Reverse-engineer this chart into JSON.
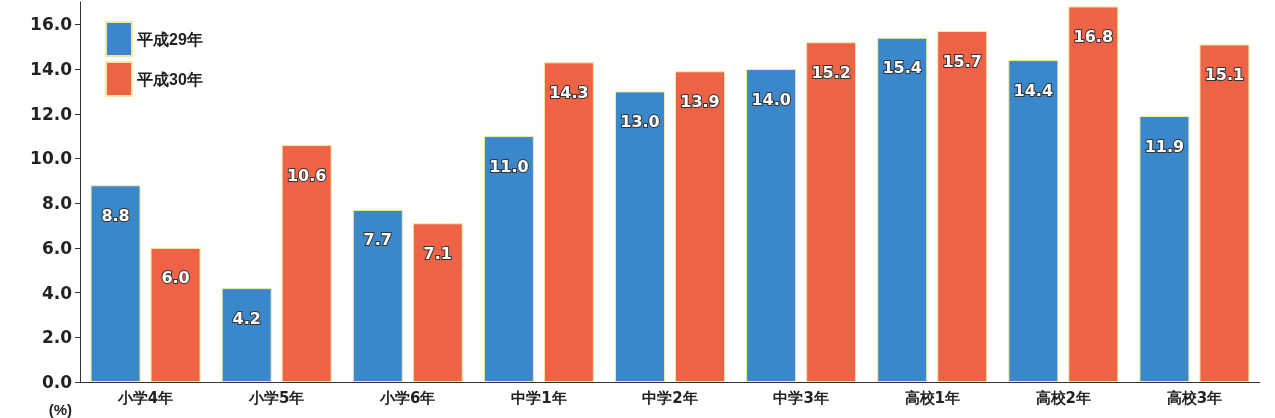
{
  "chart_data": {
    "type": "bar",
    "ylabel": "(%)",
    "categories": [
      "小学4年",
      "小学5年",
      "小学6年",
      "中学1年",
      "中学2年",
      "中学3年",
      "高校1年",
      "高校2年",
      "高校3年"
    ],
    "series": [
      {
        "name": "平成29年",
        "color": "#3a87c9",
        "values": [
          8.8,
          4.2,
          7.7,
          11.0,
          13.0,
          14.0,
          15.4,
          14.4,
          11.9
        ],
        "value_labels": [
          "8.8",
          "4.2",
          "7.7",
          "11.0",
          "13.0",
          "14.0",
          "15.4",
          "14.4",
          "11.9"
        ]
      },
      {
        "name": "平成30年",
        "color": "#ee6346",
        "values": [
          6.0,
          10.6,
          7.1,
          14.3,
          13.9,
          15.2,
          15.7,
          16.8,
          15.1
        ],
        "value_labels": [
          "6.0",
          "10.6",
          "7.1",
          "14.3",
          "13.9",
          "15.2",
          "15.7",
          "16.8",
          "15.1"
        ]
      }
    ],
    "ylim": [
      0,
      17
    ],
    "yticks": [
      {
        "value": 0,
        "label": "0.0"
      },
      {
        "value": 2,
        "label": "2.0"
      },
      {
        "value": 4,
        "label": "4.0"
      },
      {
        "value": 6,
        "label": "6.0"
      },
      {
        "value": 8,
        "label": "8.0"
      },
      {
        "value": 10,
        "label": "10.0"
      },
      {
        "value": 12,
        "label": "12.0"
      },
      {
        "value": 14,
        "label": "14.0"
      },
      {
        "value": 16,
        "label": "16.0"
      }
    ],
    "grid": false,
    "legend": "top left"
  }
}
